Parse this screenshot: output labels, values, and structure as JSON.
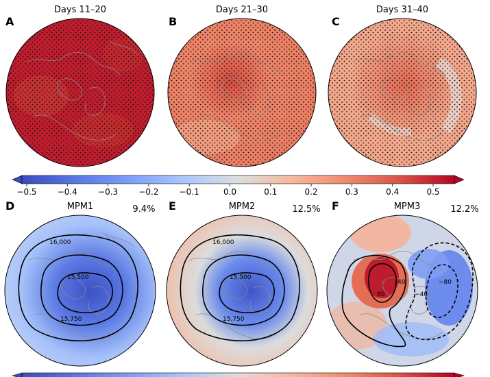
{
  "top_row": {
    "panels": [
      {
        "letter": "A",
        "title": "Days 11–20"
      },
      {
        "letter": "B",
        "title": "Days 21–30"
      },
      {
        "letter": "C",
        "title": "Days 31–40"
      }
    ],
    "colorbar": {
      "ticks": [
        "−0.5",
        "−0.4",
        "−0.3",
        "−0.2",
        "−0.1",
        "0.0",
        "0.1",
        "0.2",
        "0.3",
        "0.4",
        "0.5"
      ],
      "range": [
        -0.5,
        0.5
      ],
      "colormap": "coolwarm",
      "extend": "both"
    },
    "stippling": true
  },
  "bottom_row": {
    "panels": [
      {
        "letter": "D",
        "title": "MPM1",
        "percent": "9.4%",
        "contour_labels": [
          "16,000",
          "15,500",
          "15,750"
        ]
      },
      {
        "letter": "E",
        "title": "MPM2",
        "percent": "12.5%",
        "contour_labels": [
          "16,000",
          "15,500",
          "15,750"
        ]
      },
      {
        "letter": "F",
        "title": "MPM3",
        "percent": "12.2%",
        "contour_labels": [
          "80",
          "40",
          "−40",
          "−80"
        ]
      }
    ],
    "colorbar": {
      "colormap": "coolwarm",
      "extend": "both"
    }
  },
  "colors": {
    "strong_red": "#b40426",
    "red": "#d75445",
    "light_red": "#f4a584",
    "neutral": "#dddddd",
    "light_blue": "#aac7fd",
    "blue": "#6282ea",
    "strong_blue": "#3b4cc0",
    "coastline": "#888888"
  }
}
